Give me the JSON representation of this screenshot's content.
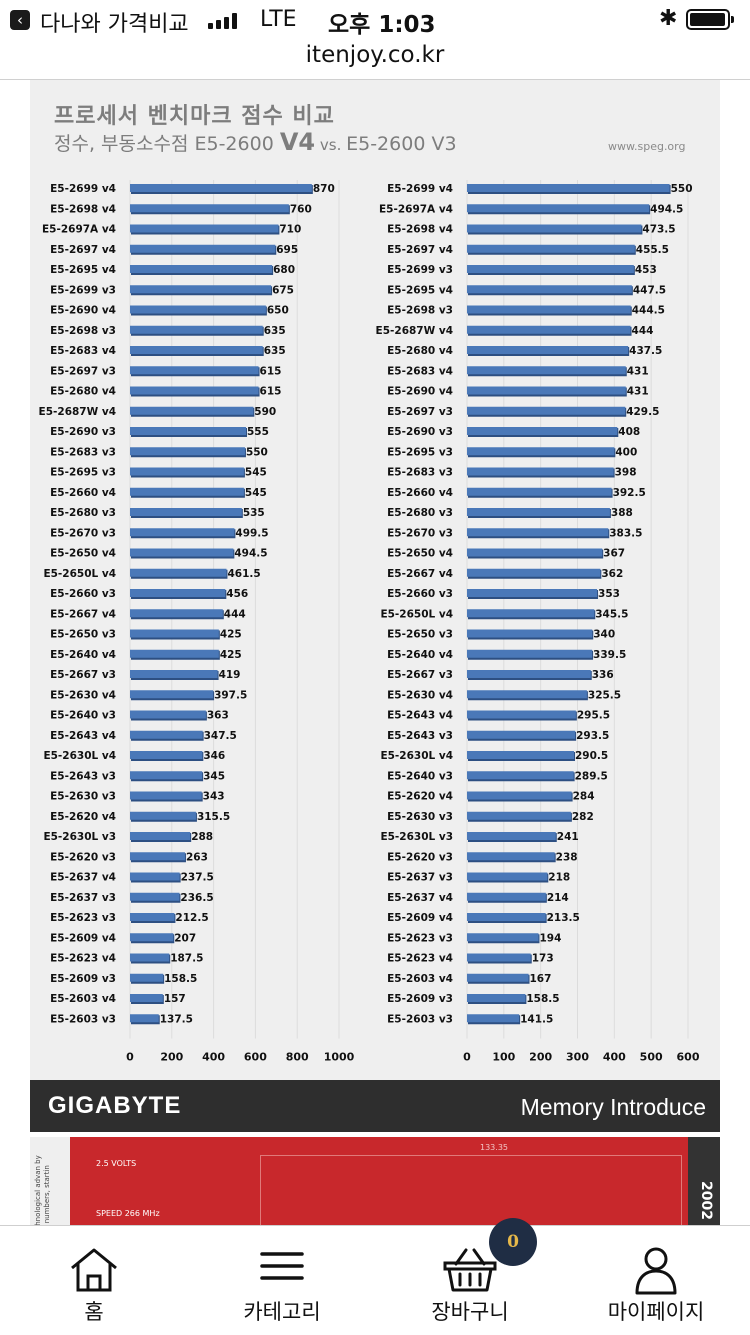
{
  "status_bar": {
    "back_app": "다나와 가격비교",
    "network": "LTE",
    "time": "오후 1:03"
  },
  "browser": {
    "url": "itenjoy.co.kr"
  },
  "article": {
    "title": "프로세서 벤치마크 점수 비교",
    "subtitle_prefix": "정수, 부동소수점 E5-2600 ",
    "subtitle_v4": "V4",
    "subtitle_vs": " vs. ",
    "subtitle_v3": "E5-2600 V3",
    "source": "www.speg.org",
    "gigabyte_logo": "GIGABYTE",
    "gigabyte_tagline": "Memory Introduce",
    "memory_side_text": "Technological advan by the numbers, startin",
    "memory_voltage": "2.5 VOLTS",
    "memory_speed": "SPEED 266 MHz",
    "memory_dimension": "133.35",
    "memory_year": "2002"
  },
  "chart_data": [
    {
      "type": "bar",
      "title": "",
      "orientation": "horizontal",
      "color": "#4a78b8",
      "xlim": [
        0,
        1000
      ],
      "xticks": [
        0,
        200,
        400,
        600,
        800,
        1000
      ],
      "categories": [
        "E5-2699 v4",
        "E5-2698 v4",
        "E5-2697A v4",
        "E5-2697 v4",
        "E5-2695 v4",
        "E5-2699 v3",
        "E5-2690 v4",
        "E5-2698 v3",
        "E5-2683 v4",
        "E5-2697 v3",
        "E5-2680 v4",
        "E5-2687W v4",
        "E5-2690 v3",
        "E5-2683 v3",
        "E5-2695 v3",
        "E5-2660 v4",
        "E5-2680 v3",
        "E5-2670 v3",
        "E5-2650 v4",
        "E5-2650L v4",
        "E5-2660 v3",
        "E5-2667 v4",
        "E5-2650 v3",
        "E5-2640 v4",
        "E5-2667 v3",
        "E5-2630 v4",
        "E5-2640 v3",
        "E5-2643 v4",
        "E5-2630L v4",
        "E5-2643 v3",
        "E5-2630 v3",
        "E5-2620 v4",
        "E5-2630L v3",
        "E5-2620 v3",
        "E5-2637 v4",
        "E5-2637 v3",
        "E5-2623 v3",
        "E5-2609 v4",
        "E5-2623 v4",
        "E5-2609 v3",
        "E5-2603 v4",
        "E5-2603 v3"
      ],
      "values": [
        870,
        760,
        710,
        695,
        680,
        675,
        650,
        635,
        635,
        615,
        615,
        590,
        555,
        550,
        545,
        545,
        535,
        499.5,
        494.5,
        461.5,
        456,
        444,
        425,
        425,
        419,
        397.5,
        363,
        347.5,
        346,
        345,
        343,
        315.5,
        288,
        263,
        237.5,
        236.5,
        212.5,
        207,
        187.5,
        158.5,
        157,
        137.5
      ]
    },
    {
      "type": "bar",
      "title": "",
      "orientation": "horizontal",
      "color": "#4a78b8",
      "xlim": [
        0,
        600
      ],
      "xticks": [
        0,
        100,
        200,
        300,
        400,
        500,
        600
      ],
      "categories": [
        "E5-2699 v4",
        "E5-2697A v4",
        "E5-2698 v4",
        "E5-2697 v4",
        "E5-2699 v3",
        "E5-2695 v4",
        "E5-2698 v3",
        "E5-2687W v4",
        "E5-2680 v4",
        "E5-2683 v4",
        "E5-2690 v4",
        "E5-2697 v3",
        "E5-2690 v3",
        "E5-2695 v3",
        "E5-2683 v3",
        "E5-2660 v4",
        "E5-2680 v3",
        "E5-2670 v3",
        "E5-2650 v4",
        "E5-2667 v4",
        "E5-2660 v3",
        "E5-2650L v4",
        "E5-2650 v3",
        "E5-2640 v4",
        "E5-2667 v3",
        "E5-2630 v4",
        "E5-2643 v4",
        "E5-2643 v3",
        "E5-2630L v4",
        "E5-2640 v3",
        "E5-2620 v4",
        "E5-2630 v3",
        "E5-2630L v3",
        "E5-2620 v3",
        "E5-2637 v3",
        "E5-2637 v4",
        "E5-2609 v4",
        "E5-2623 v3",
        "E5-2623 v4",
        "E5-2603 v4",
        "E5-2609 v3",
        "E5-2603 v3"
      ],
      "values": [
        550,
        494.5,
        473.5,
        455.5,
        453,
        447.5,
        444.5,
        444,
        437.5,
        431,
        431,
        429.5,
        408,
        400,
        398,
        392.5,
        388,
        383.5,
        367,
        362,
        353,
        345.5,
        340,
        339.5,
        336,
        325.5,
        295.5,
        293.5,
        290.5,
        289.5,
        284,
        282,
        241,
        238,
        218,
        214,
        213.5,
        194,
        173,
        167,
        158.5,
        141.5
      ]
    }
  ],
  "tab_bar": {
    "tabs": [
      {
        "label": "홈",
        "icon": "home-icon"
      },
      {
        "label": "카테고리",
        "icon": "menu-icon"
      },
      {
        "label": "장바구니",
        "icon": "basket-icon"
      },
      {
        "label": "마이페이지",
        "icon": "person-icon"
      }
    ],
    "cart_count": "0"
  }
}
